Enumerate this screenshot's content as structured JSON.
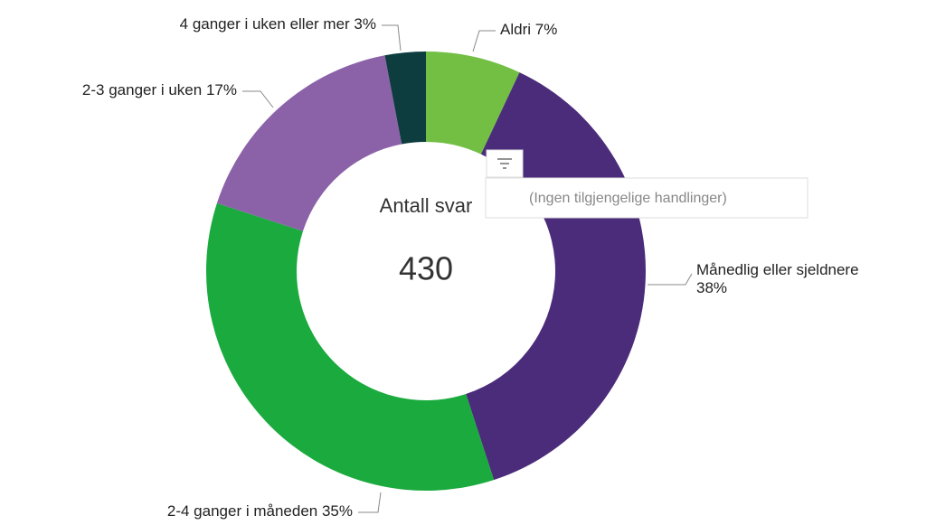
{
  "chart_data": {
    "type": "donut",
    "categories": [
      "Aldri",
      "Månedlig eller sjeldnere",
      "2-4 ganger i måneden",
      "2-3 ganger i uken",
      "4 ganger i uken eller mer"
    ],
    "values": [
      7,
      38,
      35,
      17,
      3
    ],
    "value_labels": [
      "7%",
      "38%",
      "35%",
      "17%",
      "3%"
    ],
    "colors": [
      "#72bf44",
      "#4b2c7a",
      "#1aaa3e",
      "#8b62a8",
      "#0d3d3f"
    ],
    "center_label": "Antall svar",
    "center_value": 430
  },
  "tooltip": "(Ingen tilgjengelige handlinger)"
}
